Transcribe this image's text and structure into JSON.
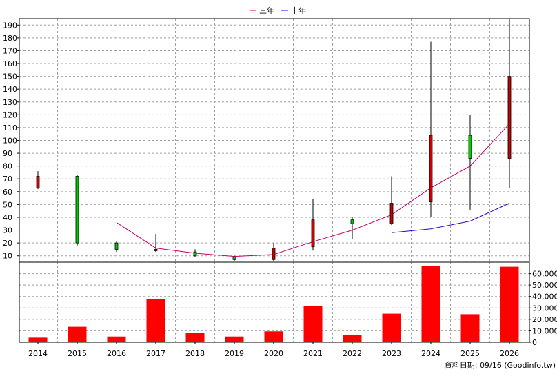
{
  "legend": {
    "items": [
      {
        "label": "三年",
        "color": "#cc0066"
      },
      {
        "label": "十年",
        "color": "#3300cc"
      }
    ],
    "placement": "top-center"
  },
  "footer": {
    "source_label": "資料日期: 09/16  (Goodinfo.tw)"
  },
  "chart_data": [
    {
      "type": "candlestick",
      "grid": true,
      "ylim": [
        5,
        195
      ],
      "yticks": [
        10,
        20,
        30,
        40,
        50,
        60,
        70,
        80,
        90,
        100,
        110,
        120,
        130,
        140,
        150,
        160,
        170,
        180,
        190
      ],
      "categories": [
        "2014",
        "2015",
        "2016",
        "2017",
        "2018",
        "2019",
        "2020",
        "2021",
        "2022",
        "2023",
        "2024",
        "2025",
        "2026"
      ],
      "ohlc": [
        {
          "x": "2014",
          "open": 63,
          "high": 76,
          "low": 62,
          "close": 72
        },
        {
          "x": "2015",
          "open": 72,
          "high": 73,
          "low": 18,
          "close": 20
        },
        {
          "x": "2016",
          "open": 20,
          "high": 21,
          "low": 13,
          "close": 15
        },
        {
          "x": "2017",
          "open": 15,
          "high": 27,
          "low": 13,
          "close": 14
        },
        {
          "x": "2018",
          "open": 13,
          "high": 15,
          "low": 9,
          "close": 10
        },
        {
          "x": "2019",
          "open": 9,
          "high": 10,
          "low": 6,
          "close": 7
        },
        {
          "x": "2020",
          "open": 7,
          "high": 20,
          "low": 6,
          "close": 16
        },
        {
          "x": "2021",
          "open": 17,
          "high": 54,
          "low": 14,
          "close": 38
        },
        {
          "x": "2022",
          "open": 38,
          "high": 40,
          "low": 23,
          "close": 35
        },
        {
          "x": "2023",
          "open": 35,
          "high": 72,
          "low": 34,
          "close": 51
        },
        {
          "x": "2024",
          "open": 52,
          "high": 177,
          "low": 40,
          "close": 104
        },
        {
          "x": "2025",
          "open": 104,
          "high": 120,
          "low": 46,
          "close": 86
        },
        {
          "x": "2026",
          "open": 86,
          "high": 195,
          "low": 63,
          "close": 150
        }
      ],
      "series": [
        {
          "name": "三年",
          "color": "#cc0066",
          "x": [
            "2016",
            "2017",
            "2018",
            "2019",
            "2020",
            "2021",
            "2022",
            "2023",
            "2024",
            "2025",
            "2026"
          ],
          "values": [
            36,
            16,
            12,
            9.5,
            11,
            21,
            30,
            42,
            63,
            80,
            113
          ]
        },
        {
          "name": "十年",
          "color": "#3300cc",
          "x": [
            "2023",
            "2024",
            "2025",
            "2026"
          ],
          "values": [
            28,
            31,
            37,
            51
          ]
        }
      ],
      "up_color": "#cc0000",
      "down_color": "#00cc00"
    },
    {
      "type": "bar",
      "grid": true,
      "ylim": [
        0,
        70000
      ],
      "yticks": [
        "0",
        "10,000",
        "20,000",
        "30,000",
        "40,000",
        "50,000",
        "60,000"
      ],
      "yticks_values": [
        0,
        10000,
        20000,
        30000,
        40000,
        50000,
        60000
      ],
      "categories": [
        "2014",
        "2015",
        "2016",
        "2017",
        "2018",
        "2019",
        "2020",
        "2021",
        "2022",
        "2023",
        "2024",
        "2025",
        "2026"
      ],
      "values": [
        4000,
        13500,
        5000,
        37500,
        8000,
        5000,
        9500,
        32000,
        6500,
        25000,
        67000,
        24500,
        66000
      ],
      "color": "#ff0000"
    }
  ]
}
